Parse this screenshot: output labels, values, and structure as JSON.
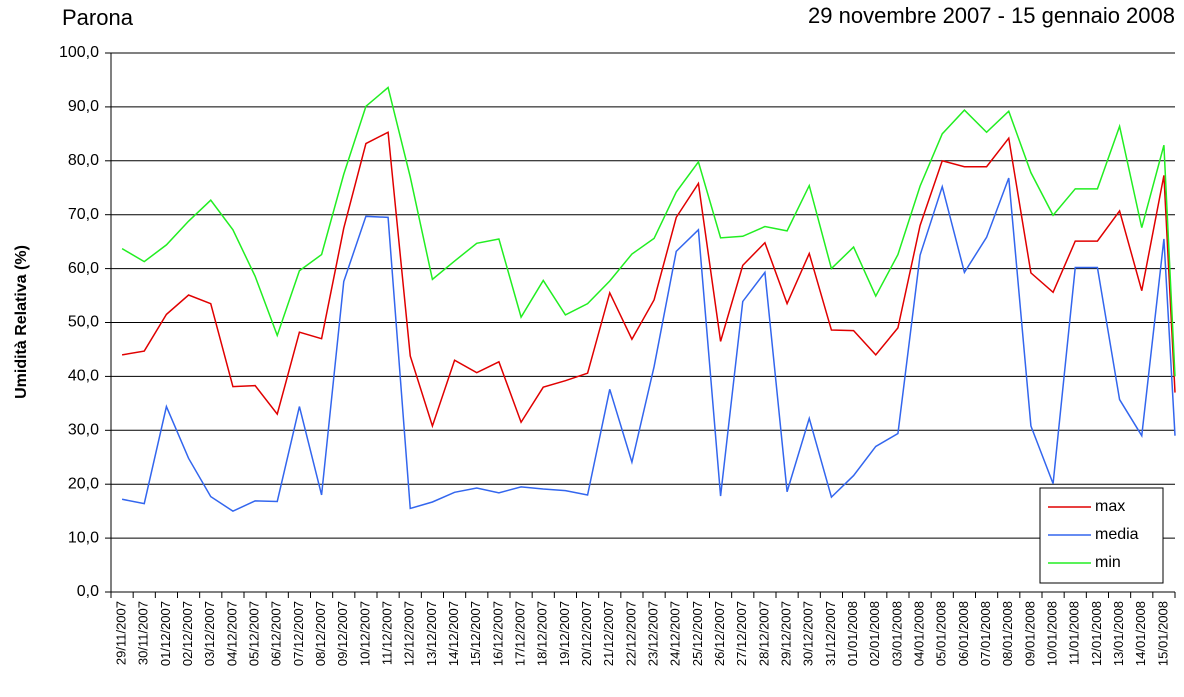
{
  "chart_data": {
    "type": "line",
    "title": "Parona",
    "subtitle": "29 novembre 2007 - 15 gennaio 2008",
    "y_label": "Umidità Relativa (%)",
    "categories": [
      "29/11/2007",
      "30/11/2007",
      "01/12/2007",
      "02/12/2007",
      "03/12/2007",
      "04/12/2007",
      "05/12/2007",
      "06/12/2007",
      "07/12/2007",
      "08/12/2007",
      "09/12/2007",
      "10/12/2007",
      "11/12/2007",
      "12/12/2007",
      "13/12/2007",
      "14/12/2007",
      "15/12/2007",
      "16/12/2007",
      "17/12/2007",
      "18/12/2007",
      "19/12/2007",
      "20/12/2007",
      "21/12/2007",
      "22/12/2007",
      "23/12/2007",
      "24/12/2007",
      "25/12/2007",
      "26/12/2007",
      "27/12/2007",
      "28/12/2007",
      "29/12/2007",
      "30/12/2007",
      "31/12/2007",
      "01/01/2008",
      "02/01/2008",
      "03/01/2008",
      "04/01/2008",
      "05/01/2008",
      "06/01/2008",
      "07/01/2008",
      "08/01/2008",
      "09/01/2008",
      "10/01/2008",
      "11/01/2008",
      "12/01/2008",
      "13/01/2008",
      "14/01/2008",
      "15/01/2008",
      null
    ],
    "series": [
      {
        "name": "max",
        "color": "#e00000",
        "values": [
          44.0,
          44.7,
          51.5,
          55.1,
          53.5,
          38.1,
          38.3,
          33.0,
          48.2,
          47.0,
          67.5,
          83.2,
          85.3,
          43.8,
          30.8,
          43.0,
          40.7,
          42.7,
          31.5,
          38.0,
          39.2,
          40.6,
          55.5,
          46.9,
          54.2,
          69.5,
          75.8,
          46.5,
          60.6,
          64.8,
          53.5,
          62.8,
          48.6,
          48.5,
          44.0,
          49.0,
          68.0,
          80.0,
          78.9,
          78.9,
          84.2,
          59.2,
          55.6,
          65.1,
          65.1,
          70.7,
          55.9,
          77.3,
          37.0
        ]
      },
      {
        "name": "media",
        "color": "#3366ee",
        "values": [
          17.2,
          16.4,
          34.4,
          24.8,
          17.7,
          15.0,
          16.9,
          16.8,
          34.4,
          18.0,
          57.6,
          69.7,
          69.5,
          15.5,
          16.7,
          18.5,
          19.3,
          18.4,
          19.5,
          19.1,
          18.8,
          18.0,
          37.6,
          24.1,
          41.8,
          63.2,
          67.2,
          17.8,
          53.9,
          59.3,
          18.6,
          32.2,
          17.6,
          21.6,
          27.0,
          29.4,
          62.5,
          75.2,
          59.3,
          65.8,
          76.8,
          30.8,
          20.1,
          60.2,
          60.2,
          35.7,
          29.0,
          65.5,
          29.0
        ]
      },
      {
        "name": "min",
        "color": "#22ee22",
        "values": [
          63.7,
          61.3,
          64.4,
          68.8,
          72.7,
          67.2,
          58.6,
          47.6,
          59.6,
          62.6,
          77.5,
          90.1,
          93.6,
          77.0,
          58.0,
          61.4,
          64.7,
          65.5,
          51.0,
          57.8,
          51.4,
          53.5,
          57.7,
          62.7,
          65.6,
          74.2,
          79.8,
          65.7,
          66.0,
          67.8,
          67.0,
          75.4,
          60.0,
          64.0,
          54.9,
          62.6,
          75.3,
          85.0,
          89.4,
          85.3,
          89.2,
          77.8,
          69.9,
          74.8,
          74.8,
          86.4,
          67.6,
          82.9,
          40.0
        ]
      }
    ],
    "ylim": [
      0,
      100
    ],
    "yticks": [
      {
        "value": 0,
        "label": "0,0"
      },
      {
        "value": 10,
        "label": "10,0"
      },
      {
        "value": 20,
        "label": "20,0"
      },
      {
        "value": 30,
        "label": "30,0"
      },
      {
        "value": 40,
        "label": "40,0"
      },
      {
        "value": 50,
        "label": "50,0"
      },
      {
        "value": 60,
        "label": "60,0"
      },
      {
        "value": 70,
        "label": "70,0"
      },
      {
        "value": 80,
        "label": "80,0"
      },
      {
        "value": 90,
        "label": "90,0"
      },
      {
        "value": 100,
        "label": "100,0"
      }
    ],
    "grid": true,
    "legend": "bottom-right"
  }
}
